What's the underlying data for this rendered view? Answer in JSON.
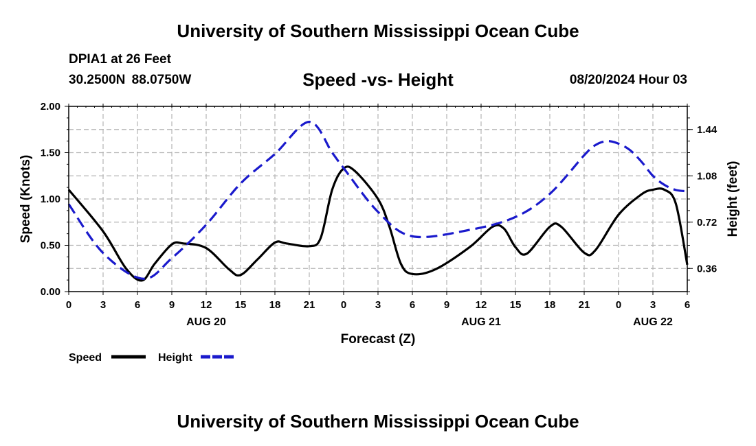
{
  "header": {
    "title": "University of Southern Mississippi Ocean Cube",
    "station": "DPIA1 at 26 Feet",
    "coordinates": "30.2500N 88.0750W",
    "subtitle": "Speed -vs- Height",
    "datetime": "08/20/2024 Hour 03"
  },
  "footer": {
    "title": "University of Southern Mississippi Ocean Cube"
  },
  "colors": {
    "speed": "#000000",
    "height": "#1a1acc",
    "grid": "#b4b4b4"
  },
  "chart_data": {
    "type": "line",
    "title": "Speed -vs- Height",
    "xlabel": "Forecast (Z)",
    "ylabel": "Speed (Knots)",
    "y2label": "Height (feet)",
    "x_range": [
      0,
      54
    ],
    "ylim": [
      0,
      2.0
    ],
    "y2lim": [
      0.18,
      1.62
    ],
    "x_tick_values": [
      0,
      3,
      6,
      9,
      12,
      15,
      18,
      21,
      24,
      27,
      30,
      33,
      36,
      39,
      42,
      45,
      48,
      51,
      54
    ],
    "x_tick_labels": [
      "0",
      "3",
      "6",
      "9",
      "12",
      "15",
      "18",
      "21",
      "0",
      "3",
      "6",
      "9",
      "12",
      "15",
      "18",
      "21",
      "0",
      "3",
      "6"
    ],
    "date_labels": [
      {
        "x": 12,
        "label": "AUG 20"
      },
      {
        "x": 36,
        "label": "AUG 21"
      },
      {
        "x": 51,
        "label": "AUG 22"
      }
    ],
    "y_ticks": [
      0.0,
      0.5,
      1.0,
      1.5,
      2.0
    ],
    "y_tick_labels": [
      "0.00",
      "0.50",
      "1.00",
      "1.50",
      "2.00"
    ],
    "y2_ticks": [
      0.36,
      0.72,
      1.08,
      1.44
    ],
    "y2_tick_labels": [
      "0.36",
      "0.72",
      "1.08",
      "1.44"
    ],
    "series": [
      {
        "name": "Speed",
        "axis": "left",
        "style": "solid",
        "x": [
          0,
          3,
          5,
          6.4,
          7.5,
          9,
          10,
          12,
          14,
          15,
          16.5,
          18,
          19,
          21,
          22,
          23,
          24,
          25,
          27,
          28,
          29,
          30,
          32,
          35,
          37,
          38,
          39,
          40,
          42,
          43,
          45,
          46,
          48,
          50,
          51,
          52,
          53,
          54
        ],
        "values": [
          1.1,
          0.65,
          0.25,
          0.12,
          0.3,
          0.51,
          0.52,
          0.47,
          0.24,
          0.18,
          0.35,
          0.53,
          0.52,
          0.49,
          0.58,
          1.1,
          1.33,
          1.3,
          1.0,
          0.7,
          0.3,
          0.19,
          0.24,
          0.48,
          0.7,
          0.68,
          0.48,
          0.41,
          0.7,
          0.7,
          0.42,
          0.45,
          0.83,
          1.05,
          1.1,
          1.1,
          0.95,
          0.29
        ]
      },
      {
        "name": "Height",
        "axis": "right",
        "style": "dashed",
        "x": [
          0,
          3,
          6.5,
          9,
          12,
          15,
          18,
          21,
          23,
          24,
          27,
          30,
          35,
          39,
          42,
          45,
          46,
          47,
          48,
          49,
          50,
          51,
          52,
          53,
          54
        ],
        "values": [
          0.86,
          0.48,
          0.28,
          0.44,
          0.7,
          1.02,
          1.25,
          1.5,
          1.26,
          1.14,
          0.8,
          0.61,
          0.66,
          0.76,
          0.94,
          1.24,
          1.32,
          1.35,
          1.33,
          1.28,
          1.19,
          1.08,
          1.01,
          0.97,
          0.96
        ]
      }
    ],
    "legend": [
      {
        "label": "Speed",
        "series": "Speed"
      },
      {
        "label": "Height",
        "series": "Height"
      }
    ],
    "legend_position": "bottom-left",
    "grid": true
  }
}
